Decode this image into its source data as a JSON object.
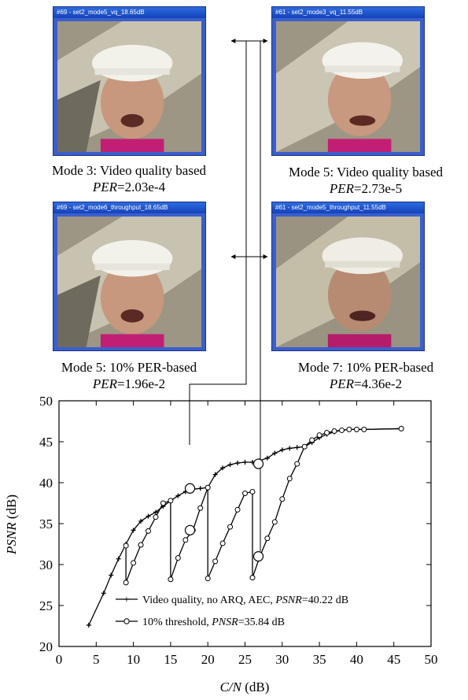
{
  "panels": [
    {
      "title": "#69 - set2_mode5_vq_18.65dB",
      "mode": "Mode 3: Video quality based",
      "per_label": "PER",
      "per_value": "=2.03e-4"
    },
    {
      "title": "#61 - set2_mode3_vq_11.55dB",
      "mode": "Mode 5: Video quality based",
      "per_label": "PER",
      "per_value": "=2.73e-5"
    },
    {
      "title": "#69 - set2_mode6_throughput_18.65dB",
      "mode": "Mode 5: 10% PER-based",
      "per_label": "PER",
      "per_value": "=1.96e-2"
    },
    {
      "title": "#61 - set2_mode5_throughput_11.55dB",
      "mode": "Mode 7: 10% PER-based",
      "per_label": "PER",
      "per_value": "=4.36e-2"
    }
  ],
  "colors": {
    "frame": "#3a5fcd",
    "titlebar": "#1542b8",
    "line": "#000000"
  },
  "chart_data": {
    "type": "line",
    "xlabel": "C/N (dB)",
    "ylabel": "PSNR (dB)",
    "xlim": [
      0,
      50
    ],
    "ylim": [
      20,
      50
    ],
    "xticks": [
      0,
      5,
      10,
      15,
      20,
      25,
      30,
      35,
      40,
      45,
      50
    ],
    "yticks": [
      20,
      25,
      30,
      35,
      40,
      45,
      50
    ],
    "grid": false,
    "legend_position": "bottom-center",
    "series": [
      {
        "name": "Video quality, no ARQ, AEC, PSNR=40.22 dB",
        "legend_text": "Video quality, no ARQ, AEC, ",
        "legend_italic": "PSNR",
        "legend_suffix": "=40.22 dB",
        "marker": "plus",
        "x": [
          4,
          6,
          7,
          8,
          9,
          10,
          11,
          12,
          13,
          14,
          15,
          16,
          17,
          18,
          19,
          20,
          21,
          22,
          23,
          24,
          25,
          26,
          27,
          28,
          29,
          30,
          31,
          32,
          33,
          34,
          35,
          36,
          37,
          38,
          39,
          40,
          41,
          46
        ],
        "y": [
          22.6,
          26.5,
          28.7,
          30.7,
          32.5,
          34.2,
          35.3,
          35.9,
          36.4,
          37.1,
          37.8,
          38.4,
          38.9,
          39.2,
          39.3,
          39.4,
          41.0,
          41.8,
          42.2,
          42.4,
          42.5,
          42.5,
          42.7,
          43.0,
          43.6,
          44.0,
          44.2,
          44.3,
          44.4,
          44.9,
          45.5,
          45.9,
          46.2,
          46.4,
          46.5,
          46.5,
          46.5,
          46.6
        ]
      },
      {
        "name": "10% threshold, PNSR=35.84 dB",
        "legend_text": "10% threshold, ",
        "legend_italic": "PNSR",
        "legend_suffix": "=35.84 dB",
        "marker": "circle",
        "x": [
          9,
          9,
          10,
          11,
          12,
          13,
          14,
          15,
          15,
          16,
          17,
          18,
          19,
          20,
          20,
          21,
          22,
          23,
          24,
          25,
          26,
          26,
          27,
          28,
          29,
          30,
          31,
          32,
          33,
          34,
          35,
          36,
          37,
          38,
          39,
          40,
          41,
          46
        ],
        "y": [
          32.3,
          27.8,
          30.2,
          32.4,
          34.1,
          35.8,
          37.5,
          37.8,
          28.2,
          30.8,
          33.0,
          34.2,
          36.9,
          39.4,
          28.3,
          30.4,
          32.6,
          34.6,
          36.7,
          38.7,
          38.9,
          28.4,
          31.0,
          33.2,
          35.2,
          38.0,
          40.5,
          42.3,
          44.4,
          45.2,
          45.8,
          46.1,
          46.3,
          46.4,
          46.5,
          46.5,
          46.5,
          46.6
        ]
      }
    ],
    "highlight_points": [
      {
        "x": 17.6,
        "y": 39.3
      },
      {
        "x": 17.6,
        "y": 34.2
      },
      {
        "x": 26.8,
        "y": 42.3
      },
      {
        "x": 26.8,
        "y": 31.0
      }
    ]
  }
}
